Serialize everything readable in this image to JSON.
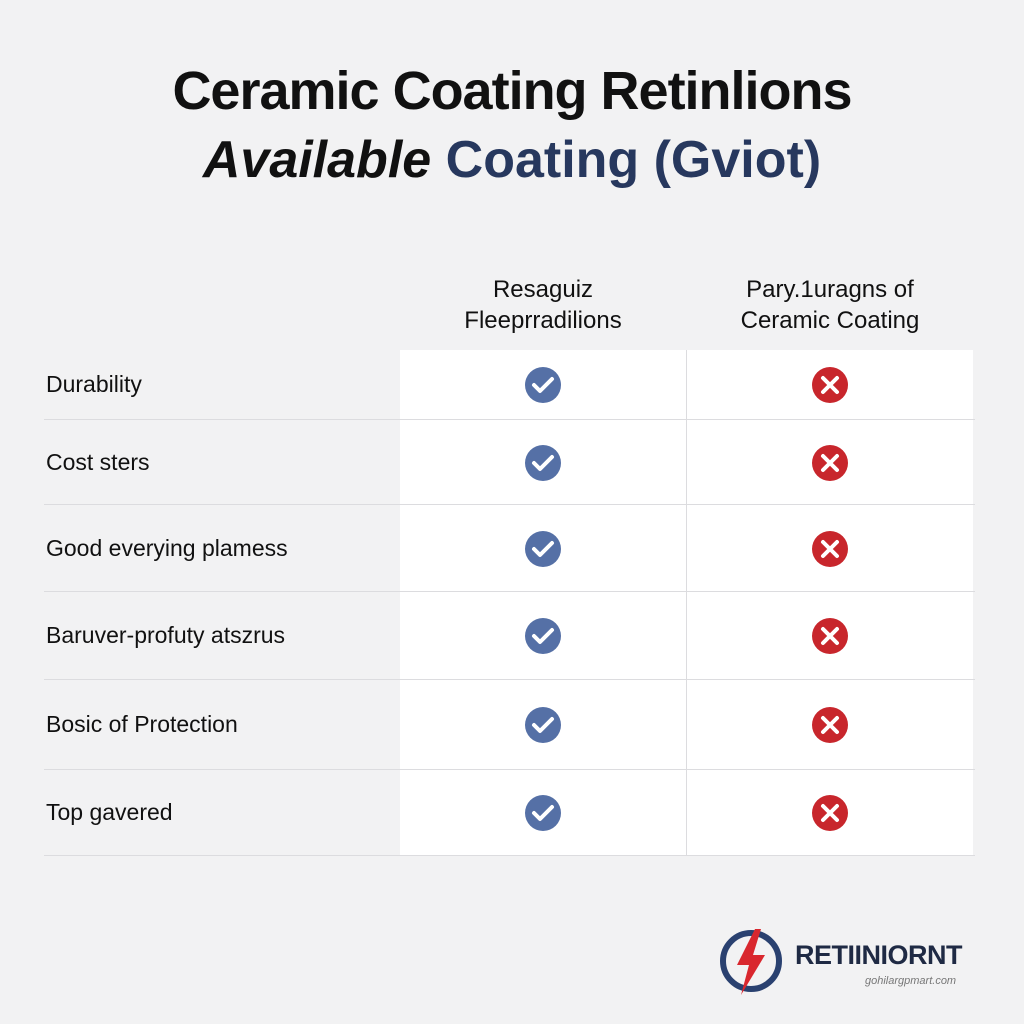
{
  "title": "Ceramic Coating Retinlions",
  "subtitle": {
    "part1": "Available",
    "part2": "Coating (Gviot)"
  },
  "table": {
    "columns": [
      {
        "line1": "Resaguiz",
        "line2": "Fleeprradilions"
      },
      {
        "line1": "Pary.1uragns of",
        "line2": "Ceramic Coating"
      }
    ],
    "rows": [
      "Durability",
      "Cost sters",
      "Good everying plamess",
      "Baruver-profuty atszrus",
      "Bosic of Protection",
      "Top gavered"
    ]
  },
  "logo": {
    "name": "RETIINIORNT",
    "url": "gohilargpmart.com"
  }
}
